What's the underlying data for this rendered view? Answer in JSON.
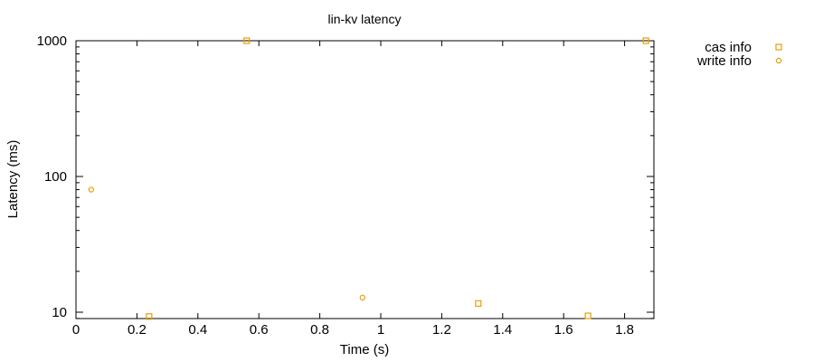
{
  "chart_data": {
    "type": "scatter",
    "title": "lin-kv latency",
    "xlabel": "Time (s)",
    "ylabel": "Latency (ms)",
    "xlim": [
      0,
      1.9
    ],
    "ylim": [
      9,
      1000
    ],
    "yscale": "log",
    "x_ticks": [
      0,
      0.2,
      0.4,
      0.6,
      0.8,
      1,
      1.2,
      1.4,
      1.6,
      1.8
    ],
    "x_tick_labels": [
      "0",
      "0.2",
      "0.4",
      "0.6",
      "0.8",
      "1",
      "1.2",
      "1.4",
      "1.6",
      "1.8"
    ],
    "y_ticks": [
      10,
      100,
      1000
    ],
    "y_tick_labels": [
      "10",
      "100",
      "1000"
    ],
    "grid": false,
    "legend_position": "outside-top-right",
    "series": [
      {
        "name": "cas info",
        "marker": "square",
        "color": "#e69f00",
        "points": [
          [
            0.24,
            9.3
          ],
          [
            0.56,
            1000
          ],
          [
            1.32,
            11.6
          ],
          [
            1.68,
            9.4
          ],
          [
            1.87,
            1000
          ]
        ]
      },
      {
        "name": "write info",
        "marker": "circle",
        "color": "#e69f00",
        "points": [
          [
            0.05,
            80
          ],
          [
            0.94,
            12.8
          ]
        ]
      }
    ]
  }
}
